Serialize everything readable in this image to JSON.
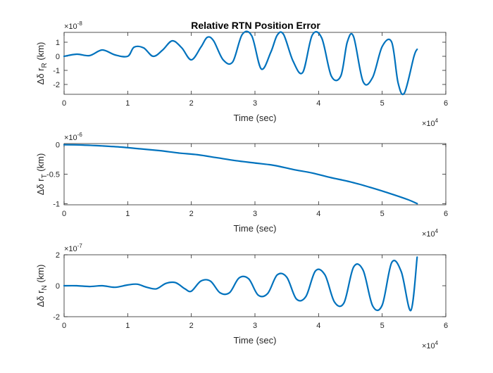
{
  "figure": {
    "title": "Relative RTN Position Error"
  },
  "chart_data": [
    {
      "type": "line",
      "title": "Relative RTN Position Error",
      "xlabel": "Time (sec)",
      "ylabel_prefix": "Δδ r",
      "ylabel_sub": "R",
      "ylabel_unit": " (km)",
      "x_tick_labels": [
        "0",
        "1",
        "2",
        "3",
        "4",
        "5",
        "6"
      ],
      "x_exponent_base": "×10",
      "x_exponent": "4",
      "y_tick_labels": [
        "-2",
        "-1",
        "0",
        "1"
      ],
      "y_exponent_base": "×10",
      "y_exponent": "-8",
      "xlim": [
        0,
        6
      ],
      "ylim": [
        -2.7,
        1.7
      ],
      "y_ticks": [
        -2,
        -1,
        0,
        1
      ],
      "grid": false,
      "line_color": "#0072BD",
      "series": [
        {
          "x": [
            0,
            0.2,
            0.4,
            0.6,
            0.8,
            1.0,
            1.1,
            1.25,
            1.4,
            1.55,
            1.7,
            1.85,
            2.0,
            2.15,
            2.25,
            2.35,
            2.5,
            2.65,
            2.8,
            2.95,
            3.1,
            3.25,
            3.35,
            3.45,
            3.6,
            3.75,
            3.9,
            4.05,
            4.2,
            4.35,
            4.45,
            4.55,
            4.7,
            4.85,
            5.0,
            5.15,
            5.25,
            5.35,
            5.5,
            5.55
          ],
          "y": [
            0.0,
            0.15,
            0.05,
            0.45,
            0.1,
            0.0,
            0.65,
            0.6,
            0.0,
            0.45,
            1.1,
            0.6,
            -0.25,
            0.65,
            1.35,
            1.1,
            -0.25,
            -0.4,
            1.55,
            1.45,
            -0.9,
            0.3,
            1.5,
            1.55,
            -0.35,
            -1.15,
            1.5,
            1.3,
            -1.4,
            -1.4,
            1.0,
            1.4,
            -1.8,
            -1.5,
            0.7,
            1.0,
            -1.9,
            -2.6,
            0.0,
            0.5
          ]
        }
      ]
    },
    {
      "type": "line",
      "title": "",
      "xlabel": "Time (sec)",
      "ylabel_prefix": "Δδ r",
      "ylabel_sub": "T",
      "ylabel_unit": " (km)",
      "x_tick_labels": [
        "0",
        "1",
        "2",
        "3",
        "4",
        "5",
        "6"
      ],
      "x_exponent_base": "×10",
      "x_exponent": "4",
      "y_tick_labels": [
        "-1",
        "-0.5",
        "0"
      ],
      "y_exponent_base": "×10",
      "y_exponent": "-6",
      "xlim": [
        0,
        6
      ],
      "ylim": [
        -1.02,
        0.02
      ],
      "y_ticks": [
        -1,
        -0.5,
        0
      ],
      "grid": false,
      "line_color": "#0072BD",
      "series": [
        {
          "x": [
            0,
            0.3,
            0.6,
            0.9,
            1.2,
            1.5,
            1.8,
            2.1,
            2.4,
            2.7,
            3.0,
            3.3,
            3.6,
            3.9,
            4.2,
            4.5,
            4.8,
            5.1,
            5.4,
            5.55
          ],
          "y": [
            0.0,
            -0.005,
            -0.02,
            -0.04,
            -0.07,
            -0.1,
            -0.14,
            -0.17,
            -0.22,
            -0.27,
            -0.31,
            -0.35,
            -0.42,
            -0.48,
            -0.56,
            -0.63,
            -0.72,
            -0.82,
            -0.93,
            -1.0
          ]
        }
      ]
    },
    {
      "type": "line",
      "title": "",
      "xlabel": "Time (sec)",
      "ylabel_prefix": "Δδ r",
      "ylabel_sub": "N",
      "ylabel_unit": " (km)",
      "x_tick_labels": [
        "0",
        "1",
        "2",
        "3",
        "4",
        "5",
        "6"
      ],
      "x_exponent_base": "×10",
      "x_exponent": "4",
      "y_tick_labels": [
        "-2",
        "0",
        "2"
      ],
      "y_exponent_base": "×10",
      "y_exponent": "-7",
      "xlim": [
        0,
        6
      ],
      "ylim": [
        -2,
        2
      ],
      "y_ticks": [
        -2,
        0,
        2
      ],
      "grid": false,
      "line_color": "#0072BD",
      "series": [
        {
          "x": [
            0,
            0.2,
            0.4,
            0.6,
            0.8,
            1.0,
            1.15,
            1.3,
            1.45,
            1.6,
            1.75,
            1.9,
            2.0,
            2.15,
            2.3,
            2.45,
            2.6,
            2.75,
            2.9,
            3.05,
            3.2,
            3.35,
            3.5,
            3.65,
            3.8,
            3.95,
            4.1,
            4.25,
            4.4,
            4.55,
            4.7,
            4.85,
            5.0,
            5.15,
            5.3,
            5.45,
            5.55
          ],
          "y": [
            0.0,
            0.0,
            -0.05,
            0.0,
            -0.1,
            0.05,
            0.1,
            -0.1,
            -0.2,
            0.15,
            0.2,
            -0.2,
            -0.35,
            0.3,
            0.3,
            -0.45,
            -0.45,
            0.5,
            0.45,
            -0.6,
            -0.5,
            0.7,
            0.55,
            -0.85,
            -0.7,
            0.95,
            0.7,
            -1.05,
            -1.1,
            1.2,
            1.0,
            -1.3,
            -1.25,
            1.5,
            0.9,
            -1.6,
            1.85
          ]
        }
      ]
    }
  ]
}
